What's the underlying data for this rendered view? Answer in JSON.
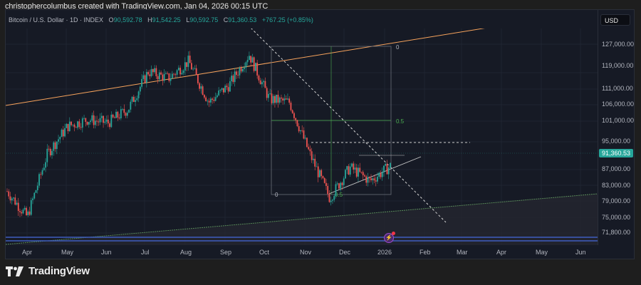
{
  "header": {
    "attribution": "christophercolumbus created with TradingView.com, Jan 04, 2026 00:15 UTC"
  },
  "legend": {
    "symbol": "Bitcoin / U.S. Dollar · 1D · INDEX",
    "o_label": "O",
    "o": "90,592.78",
    "h_label": "H",
    "h": "91,542.25",
    "l_label": "L",
    "l": "90,592.75",
    "c_label": "C",
    "c": "91,360.53",
    "change": "+767.25 (+0.85%)"
  },
  "currency_button": "USD",
  "last_price_tag": "91,360.53",
  "colors": {
    "up": "#26a69a",
    "down": "#ef5350",
    "background": "#161a25",
    "page": "#1e1e1e",
    "trendline_orange": "#f7a35c",
    "fib_green": "#4caf50",
    "blue_support": "#3f5dbf"
  },
  "logo": {
    "text": "TradingView"
  },
  "chart_data": {
    "type": "candlestick",
    "title": "Bitcoin / U.S. Dollar · 1D · INDEX",
    "xlabel": "",
    "ylabel": "USD",
    "y_ticks": [
      "127,000.00",
      "119,000.00",
      "111,000.00",
      "106,000.00",
      "101,000.00",
      "95,000.00",
      "87,000.00",
      "83,000.00",
      "79,000.00",
      "75,000.00",
      "71,800.00"
    ],
    "x_ticks": [
      "Apr",
      "May",
      "Jun",
      "Jul",
      "Aug",
      "Sep",
      "Oct",
      "Nov",
      "Dec",
      "2026",
      "Feb",
      "Mar",
      "Apr",
      "May",
      "Jun"
    ],
    "ohlc_last": {
      "open": 90592.78,
      "high": 91542.25,
      "low": 90592.75,
      "close": 91360.53
    },
    "approx_path_close": [
      {
        "x": "Apr",
        "close": 84000
      },
      {
        "x": "Apr mid",
        "close": 76500
      },
      {
        "x": "May",
        "close": 95000
      },
      {
        "x": "May mid",
        "close": 103000
      },
      {
        "x": "Jun",
        "close": 105000
      },
      {
        "x": "Jun mid",
        "close": 104000
      },
      {
        "x": "Jul",
        "close": 108000
      },
      {
        "x": "Jul mid",
        "close": 119000
      },
      {
        "x": "Aug",
        "close": 117000
      },
      {
        "x": "Aug mid",
        "close": 122000
      },
      {
        "x": "Sep",
        "close": 110000
      },
      {
        "x": "Sep mid",
        "close": 115000
      },
      {
        "x": "Oct",
        "close": 124000
      },
      {
        "x": "Oct mid",
        "close": 111000
      },
      {
        "x": "Nov",
        "close": 110000
      },
      {
        "x": "Nov mid",
        "close": 95000
      },
      {
        "x": "Nov low",
        "close": 82000
      },
      {
        "x": "Dec",
        "close": 91000
      },
      {
        "x": "Dec mid",
        "close": 87000
      },
      {
        "x": "2026",
        "close": 91360
      }
    ],
    "annotations": [
      {
        "type": "fib_retracement",
        "levels": [
          "0",
          "0.5",
          "1"
        ],
        "from": 126000,
        "to": 81000
      },
      {
        "type": "fib_retracement_small",
        "levels": [
          "0",
          "0.5"
        ]
      },
      {
        "type": "horizontal_dotted",
        "price": 94500
      },
      {
        "type": "descending_dotted_trendline",
        "from": "Oct high",
        "to": "Feb ~74,000"
      },
      {
        "type": "ascending_trendline_orange",
        "label": "channel top"
      },
      {
        "type": "ascending_triangle_support"
      },
      {
        "type": "blue_horizontal_levels",
        "price": 71800
      }
    ],
    "fib_labels": {
      "top": "0",
      "mid": "0.5",
      "bottom_left": "0",
      "bottom_mid": "0.5"
    }
  }
}
